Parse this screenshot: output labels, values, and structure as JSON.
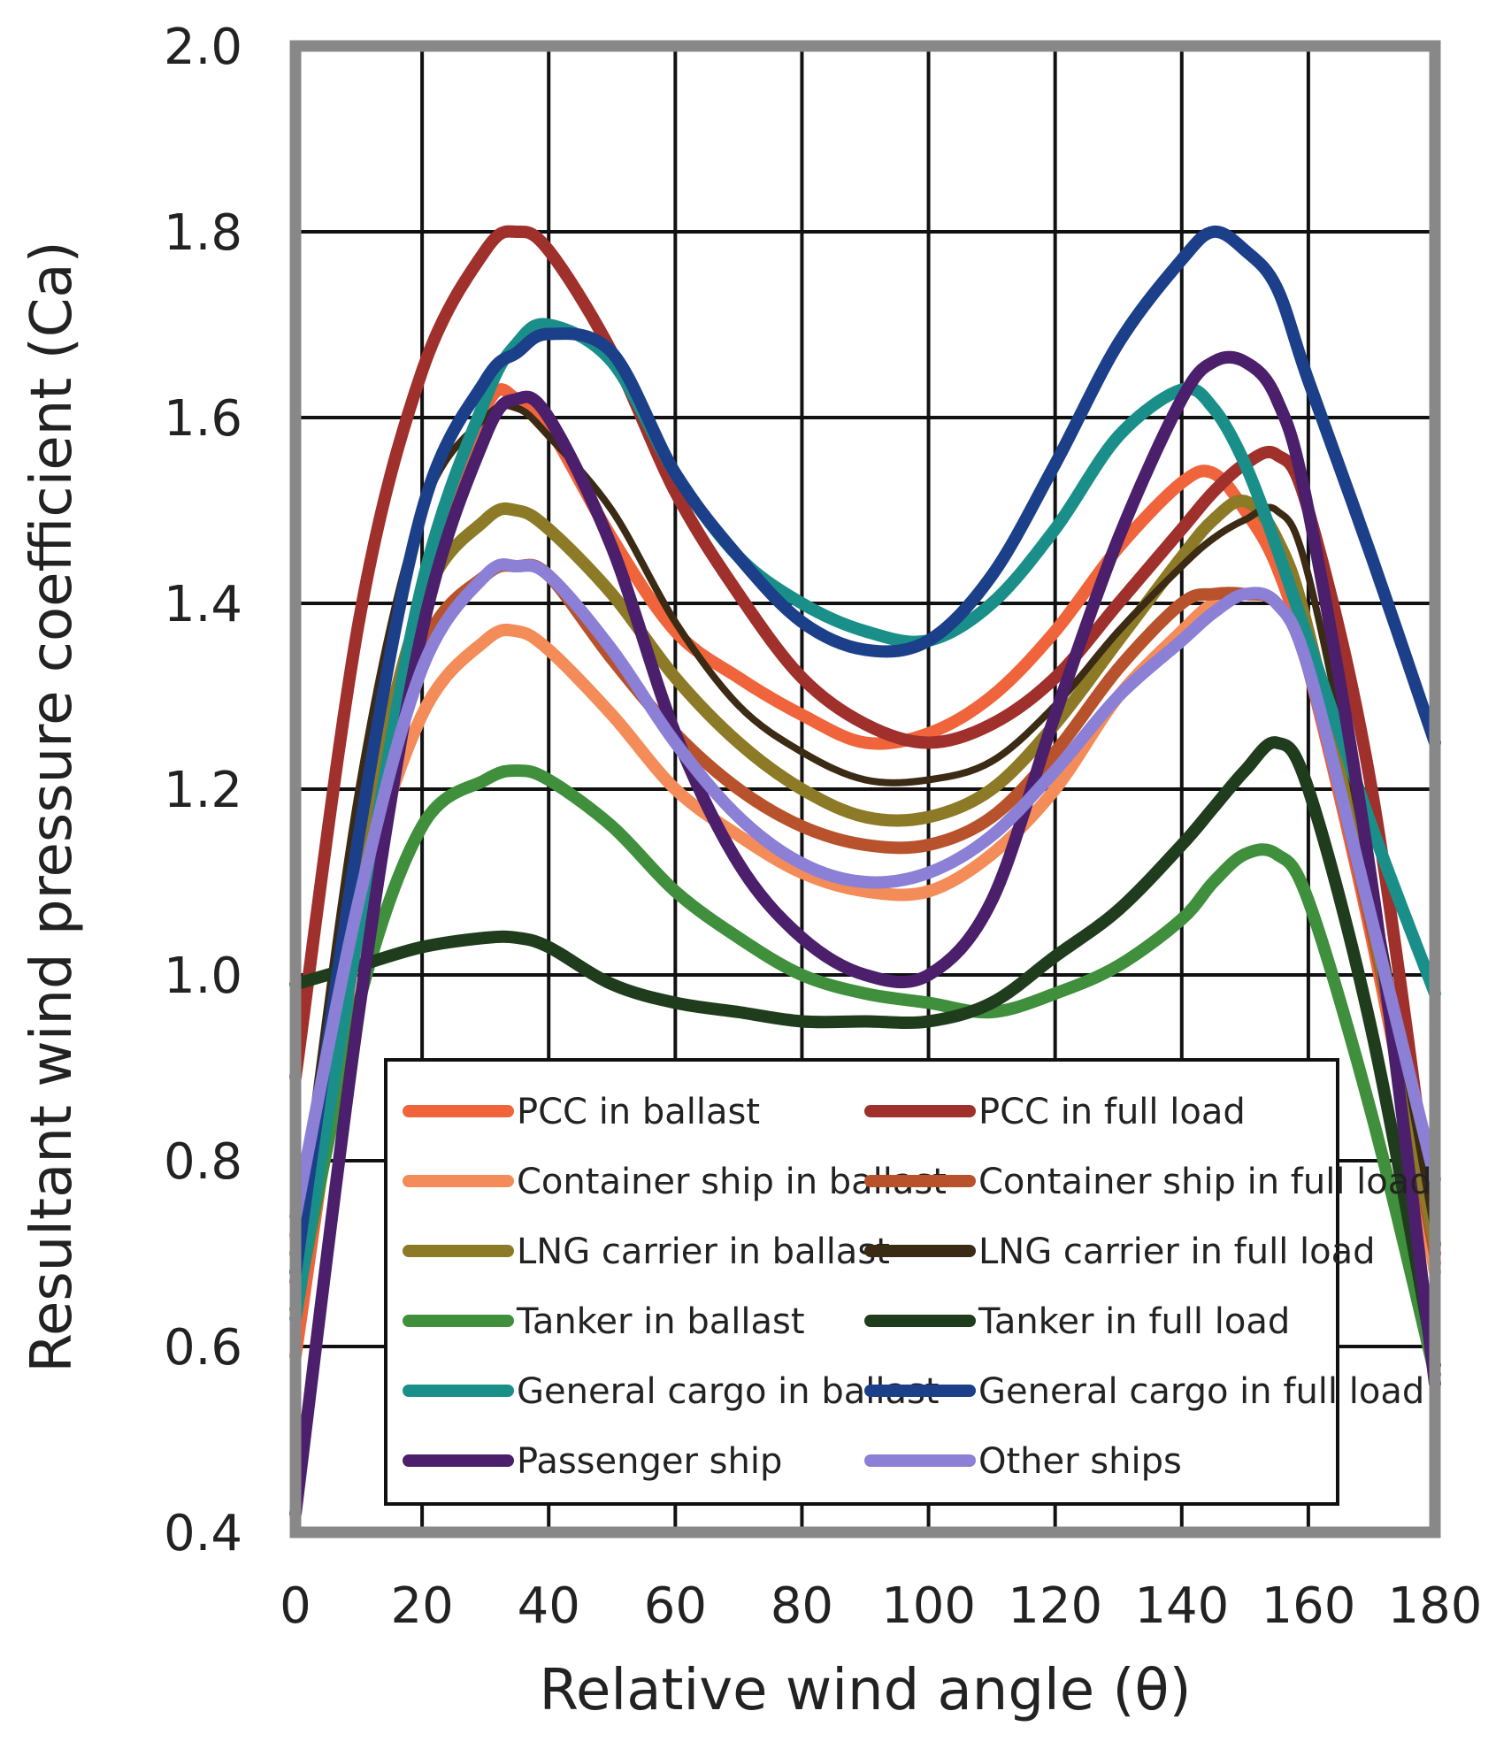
{
  "chart_data": {
    "type": "line",
    "title": "",
    "xlabel": "Relative wind angle (θ)",
    "ylabel": "Resultant wind pressure coefficient (Ca)",
    "xlim": [
      0,
      180
    ],
    "ylim": [
      0.4,
      2.0
    ],
    "x_ticks": [
      "0",
      "20",
      "40",
      "60",
      "80",
      "100",
      "120",
      "140",
      "160",
      "180"
    ],
    "y_ticks": [
      "0.4",
      "0.6",
      "0.8",
      "1.0",
      "1.2",
      "1.4",
      "1.6",
      "1.8",
      "2.0"
    ],
    "grid": true,
    "legend_position": "bottom-center",
    "x": [
      0,
      10,
      20,
      30,
      35,
      40,
      50,
      60,
      70,
      80,
      90,
      100,
      110,
      120,
      130,
      140,
      145,
      150,
      155,
      160,
      170,
      180
    ],
    "series": [
      {
        "name": "PCC in ballast",
        "color": "#f0643c",
        "width": 14,
        "values": [
          0.59,
          1.05,
          1.4,
          1.61,
          1.62,
          1.59,
          1.47,
          1.37,
          1.32,
          1.28,
          1.25,
          1.26,
          1.3,
          1.37,
          1.46,
          1.53,
          1.54,
          1.5,
          1.44,
          1.33,
          1.04,
          0.69
        ]
      },
      {
        "name": "PCC in full load",
        "color": "#a0302c",
        "width": 14,
        "values": [
          0.89,
          1.38,
          1.65,
          1.78,
          1.8,
          1.78,
          1.67,
          1.52,
          1.41,
          1.32,
          1.27,
          1.25,
          1.27,
          1.32,
          1.4,
          1.48,
          1.52,
          1.55,
          1.56,
          1.5,
          1.2,
          0.71
        ]
      },
      {
        "name": "Container ship in ballast",
        "color": "#f38c58",
        "width": 14,
        "values": [
          0.72,
          1.07,
          1.28,
          1.36,
          1.37,
          1.35,
          1.28,
          1.2,
          1.15,
          1.11,
          1.09,
          1.09,
          1.13,
          1.2,
          1.3,
          1.37,
          1.4,
          1.41,
          1.4,
          1.33,
          1.05,
          0.68
        ]
      },
      {
        "name": "Container ship in full load",
        "color": "#b8522c",
        "width": 14,
        "values": [
          0.67,
          1.1,
          1.35,
          1.43,
          1.44,
          1.43,
          1.34,
          1.26,
          1.2,
          1.16,
          1.14,
          1.14,
          1.17,
          1.24,
          1.33,
          1.4,
          1.41,
          1.41,
          1.4,
          1.33,
          1.05,
          0.7
        ]
      },
      {
        "name": "LNG carrier in ballast",
        "color": "#8c7a26",
        "width": 14,
        "values": [
          0.7,
          1.12,
          1.4,
          1.49,
          1.5,
          1.48,
          1.41,
          1.32,
          1.25,
          1.2,
          1.17,
          1.17,
          1.2,
          1.27,
          1.36,
          1.45,
          1.49,
          1.51,
          1.47,
          1.37,
          1.06,
          0.71
        ]
      },
      {
        "name": "LNG carrier in full load",
        "color": "#3b2a14",
        "width": 8,
        "values": [
          0.7,
          1.2,
          1.5,
          1.6,
          1.61,
          1.58,
          1.5,
          1.38,
          1.29,
          1.24,
          1.21,
          1.21,
          1.23,
          1.29,
          1.37,
          1.44,
          1.47,
          1.49,
          1.5,
          1.43,
          1.1,
          0.72
        ]
      },
      {
        "name": "Tanker in ballast",
        "color": "#3f8f3c",
        "width": 14,
        "values": [
          0.64,
          0.97,
          1.16,
          1.21,
          1.22,
          1.21,
          1.16,
          1.09,
          1.04,
          1.0,
          0.98,
          0.97,
          0.96,
          0.98,
          1.01,
          1.06,
          1.1,
          1.13,
          1.13,
          1.08,
          0.85,
          0.57
        ]
      },
      {
        "name": "Tanker in full load",
        "color": "#1f3d1c",
        "width": 14,
        "values": [
          0.99,
          1.01,
          1.03,
          1.04,
          1.04,
          1.03,
          0.99,
          0.97,
          0.96,
          0.95,
          0.95,
          0.95,
          0.97,
          1.02,
          1.07,
          1.14,
          1.18,
          1.22,
          1.25,
          1.2,
          0.94,
          0.58
        ]
      },
      {
        "name": "General cargo in ballast",
        "color": "#1a8f8a",
        "width": 14,
        "values": [
          0.63,
          1.05,
          1.42,
          1.62,
          1.68,
          1.7,
          1.66,
          1.54,
          1.45,
          1.4,
          1.37,
          1.36,
          1.4,
          1.48,
          1.58,
          1.63,
          1.61,
          1.55,
          1.46,
          1.36,
          1.16,
          0.98
        ]
      },
      {
        "name": "General cargo in full load",
        "color": "#1c3f8a",
        "width": 14,
        "values": [
          0.68,
          1.15,
          1.5,
          1.64,
          1.67,
          1.69,
          1.67,
          1.54,
          1.45,
          1.38,
          1.35,
          1.36,
          1.43,
          1.55,
          1.68,
          1.77,
          1.8,
          1.78,
          1.74,
          1.64,
          1.45,
          1.25
        ]
      },
      {
        "name": "Passenger ship",
        "color": "#4b1f6b",
        "width": 14,
        "values": [
          0.42,
          0.96,
          1.37,
          1.58,
          1.62,
          1.6,
          1.46,
          1.26,
          1.12,
          1.04,
          1.0,
          1.0,
          1.08,
          1.28,
          1.47,
          1.62,
          1.66,
          1.66,
          1.62,
          1.5,
          1.1,
          0.56
        ]
      },
      {
        "name": "Other ships",
        "color": "#8b7fd6",
        "width": 14,
        "values": [
          0.74,
          1.08,
          1.33,
          1.43,
          1.44,
          1.43,
          1.35,
          1.25,
          1.17,
          1.12,
          1.1,
          1.11,
          1.15,
          1.22,
          1.3,
          1.36,
          1.39,
          1.41,
          1.4,
          1.33,
          1.06,
          0.78
        ]
      }
    ]
  }
}
